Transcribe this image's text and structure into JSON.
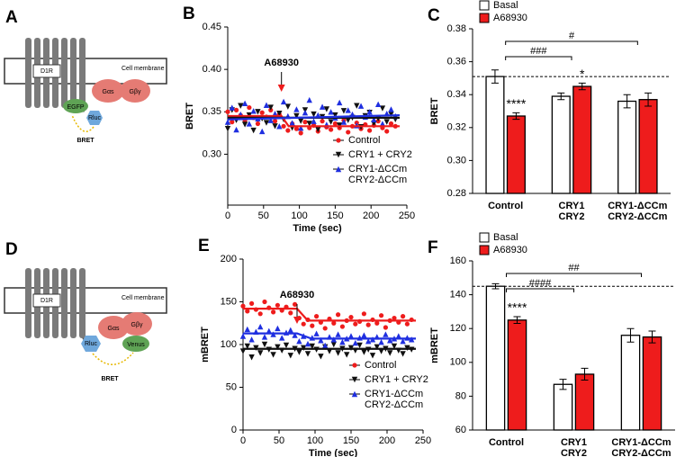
{
  "diagrams": [
    {
      "panel": "A",
      "receptor": "D1R",
      "membrane": "Cell membrane",
      "g_alpha": "Gαs",
      "g_beta_gamma": "Gβγ",
      "donor": "Rluc",
      "acceptor": "EGFP",
      "signal": "BRET"
    },
    {
      "panel": "D",
      "receptor": "D1R",
      "membrane": "Cell membrane",
      "g_alpha": "Gαs",
      "g_beta_gamma": "Gβγ",
      "donor": "Rluc",
      "acceptor": "Venus",
      "signal": "BRET"
    }
  ],
  "chart_data": [
    {
      "panel": "B",
      "type": "scatter",
      "xlabel": "Time (sec)",
      "ylabel": "BRET",
      "annotation": "A68930",
      "legend": "lower right",
      "xlim": [
        0,
        250
      ],
      "xticks": [
        0,
        50,
        100,
        150,
        200,
        250
      ],
      "ylim": [
        0.24,
        0.45
      ],
      "yticks": [
        {
          "value": 0.3,
          "label": "0.30"
        },
        0.35,
        {
          "value": 0.4,
          "label": "0.40"
        },
        0.45
      ],
      "x": [
        0,
        6,
        12,
        18,
        24,
        30,
        36,
        42,
        48,
        54,
        60,
        66,
        72,
        78,
        84,
        90,
        96,
        102,
        108,
        114,
        120,
        126,
        132,
        138,
        144,
        150,
        156,
        162,
        168,
        174,
        180,
        186,
        192,
        198,
        204,
        210,
        216,
        222,
        228,
        234
      ],
      "series": [
        {
          "name": "Control",
          "color": "#ee1c1c",
          "marker": "circle",
          "values": [
            0.35,
            0.338,
            0.352,
            0.346,
            0.34,
            0.355,
            0.343,
            0.336,
            0.349,
            0.344,
            0.352,
            0.339,
            0.347,
            0.333,
            0.328,
            0.336,
            0.33,
            0.325,
            0.338,
            0.331,
            0.334,
            0.327,
            0.339,
            0.332,
            0.329,
            0.336,
            0.331,
            0.34,
            0.326,
            0.333,
            0.337,
            0.33,
            0.335,
            0.328,
            0.334,
            0.339,
            0.331,
            0.327,
            0.336,
            0.333
          ],
          "fit": {
            "x": [
              0,
              75,
              85,
              240
            ],
            "values": [
              0.345,
              0.345,
              0.333,
              0.333
            ]
          }
        },
        {
          "name": "CRY1 + CRY2",
          "color": "#111111",
          "marker": "triangle-down",
          "values": [
            0.33,
            0.352,
            0.34,
            0.357,
            0.335,
            0.346,
            0.328,
            0.35,
            0.342,
            0.337,
            0.355,
            0.333,
            0.348,
            0.341,
            0.356,
            0.331,
            0.345,
            0.339,
            0.352,
            0.336,
            0.347,
            0.329,
            0.344,
            0.353,
            0.338,
            0.346,
            0.334,
            0.351,
            0.34,
            0.343,
            0.357,
            0.332,
            0.345,
            0.349,
            0.336,
            0.342,
            0.354,
            0.338,
            0.347,
            0.341
          ],
          "fit": {
            "x": [
              0,
              240
            ],
            "values": [
              0.343,
              0.343
            ]
          }
        },
        {
          "name": [
            "CRY1-ΔCCm",
            "CRY2-ΔCCm"
          ],
          "color": "#1f2fe0",
          "marker": "triangle-up",
          "values": [
            0.338,
            0.355,
            0.329,
            0.347,
            0.36,
            0.336,
            0.351,
            0.342,
            0.327,
            0.358,
            0.34,
            0.348,
            0.333,
            0.362,
            0.345,
            0.337,
            0.353,
            0.331,
            0.349,
            0.364,
            0.339,
            0.346,
            0.356,
            0.335,
            0.35,
            0.343,
            0.361,
            0.338,
            0.352,
            0.347,
            0.334,
            0.357,
            0.344,
            0.35,
            0.341,
            0.359,
            0.336,
            0.348,
            0.353,
            0.345
          ],
          "fit": {
            "x": [
              0,
              240
            ],
            "values": [
              0.341,
              0.346
            ]
          }
        }
      ]
    },
    {
      "panel": "C",
      "type": "bar",
      "ylabel": "BRET",
      "legend": "top left",
      "reference_line": true,
      "ylim": [
        0.28,
        0.38
      ],
      "yticks": [
        0.28,
        {
          "value": 0.3,
          "label": "0.30"
        },
        0.32,
        0.34,
        0.36,
        0.38
      ],
      "categories": [
        [
          "Control"
        ],
        [
          "CRY1",
          "CRY2"
        ],
        [
          "CRY1-ΔCCm",
          "CRY2-ΔCCm"
        ]
      ],
      "series": [
        {
          "name": "Basal",
          "color": "#ffffff",
          "values": [
            0.351,
            0.339,
            0.336
          ],
          "errors": [
            0.004,
            0.002,
            0.004
          ]
        },
        {
          "name": "A68930",
          "color": "#ee1c1c",
          "values": [
            0.327,
            0.345,
            0.337
          ],
          "errors": [
            0.002,
            0.002,
            0.004
          ]
        }
      ],
      "brackets": [
        {
          "from": 0,
          "to": 2,
          "label": "#"
        },
        {
          "from": 0,
          "to": 1,
          "label": "###"
        }
      ],
      "stars": [
        {
          "series": 1,
          "category": 0,
          "label": "****"
        },
        {
          "series": 1,
          "category": 1,
          "label": "*"
        }
      ]
    },
    {
      "panel": "E",
      "type": "scatter",
      "xlabel": "Time (sec)",
      "ylabel": "mBRET",
      "annotation": "A68930",
      "legend": "lower right",
      "xlim": [
        0,
        250
      ],
      "xticks": [
        0,
        50,
        100,
        150,
        200,
        250
      ],
      "ylim": [
        0,
        200
      ],
      "yticks": [
        0,
        50,
        100,
        150,
        200
      ],
      "x": [
        0,
        6,
        12,
        18,
        24,
        30,
        36,
        42,
        48,
        54,
        60,
        66,
        72,
        78,
        84,
        90,
        96,
        102,
        108,
        114,
        120,
        126,
        132,
        138,
        144,
        150,
        156,
        162,
        168,
        174,
        180,
        186,
        192,
        198,
        204,
        210,
        216,
        222,
        228,
        234
      ],
      "series": [
        {
          "name": "Control",
          "color": "#ee1c1c",
          "marker": "circle",
          "values": [
            145,
            139,
            148,
            141,
            136,
            150,
            143,
            138,
            146,
            140,
            144,
            137,
            147,
            131,
            124,
            129,
            122,
            133,
            126,
            119,
            130,
            125,
            135,
            121,
            128,
            132,
            124,
            127,
            136,
            123,
            129,
            125,
            134,
            120,
            128,
            131,
            126,
            133,
            124,
            129
          ],
          "fit": {
            "x": [
              0,
              75,
              90,
              240
            ],
            "values": [
              142,
              142,
              128,
              128
            ]
          }
        },
        {
          "name": "CRY1 + CRY2",
          "color": "#111111",
          "marker": "triangle-down",
          "values": [
            92,
            98,
            85,
            96,
            90,
            100,
            94,
            88,
            97,
            93,
            99,
            87,
            95,
            91,
            96,
            89,
            98,
            94,
            86,
            97,
            92,
            100,
            90,
            95,
            88,
            96,
            93,
            99,
            91,
            94,
            87,
            97,
            92,
            95,
            90,
            98,
            93,
            89,
            96,
            94
          ],
          "fit": {
            "x": [
              0,
              240
            ],
            "values": [
              95,
              95
            ]
          }
        },
        {
          "name": [
            "CRY1-ΔCCm",
            "CRY2-ΔCCm"
          ],
          "color": "#1f2fe0",
          "marker": "triangle-up",
          "values": [
            110,
            118,
            106,
            115,
            121,
            109,
            116,
            112,
            119,
            108,
            114,
            117,
            111,
            104,
            110,
            101,
            108,
            113,
            105,
            99,
            109,
            106,
            112,
            103,
            107,
            110,
            102,
            108,
            111,
            104,
            106,
            109,
            103,
            112,
            105,
            107,
            110,
            104,
            108,
            106
          ],
          "fit": {
            "x": [
              0,
              75,
              95,
              240
            ],
            "values": [
              113,
              113,
              107,
              107
            ]
          }
        }
      ]
    },
    {
      "panel": "F",
      "type": "bar",
      "ylabel": "mBRET",
      "legend": "top left",
      "reference_line": true,
      "ylim": [
        60,
        160
      ],
      "yticks": [
        60,
        80,
        100,
        120,
        140,
        160
      ],
      "categories": [
        [
          "Control"
        ],
        [
          "CRY1",
          "CRY2"
        ],
        [
          "CRY1-ΔCCm",
          "CRY2-ΔCCm"
        ]
      ],
      "series": [
        {
          "name": "Basal",
          "color": "#ffffff",
          "values": [
            145,
            87,
            116
          ],
          "errors": [
            1.5,
            3,
            4
          ]
        },
        {
          "name": "A68930",
          "color": "#ee1c1c",
          "values": [
            125,
            93,
            115
          ],
          "errors": [
            2,
            3.5,
            3.5
          ]
        }
      ],
      "brackets": [
        {
          "from": 0,
          "to": 2,
          "label": "##"
        },
        {
          "from": 0,
          "to": 1,
          "label": "####"
        }
      ],
      "stars": [
        {
          "series": 1,
          "category": 0,
          "label": "****"
        }
      ]
    }
  ]
}
